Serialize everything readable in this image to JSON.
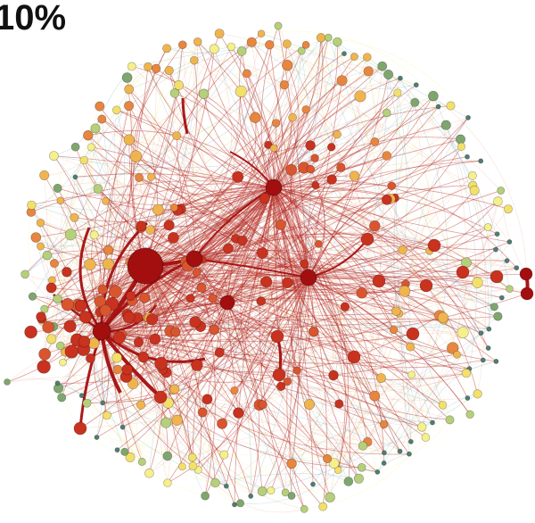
{
  "figure": {
    "title": "10%"
  },
  "network": {
    "palette": {
      "dark_red": "#a30f0f",
      "red": "#c8321f",
      "orange_red": "#d9552e",
      "orange": "#e8853f",
      "amber": "#f0b44f",
      "yellow": "#f2e06a",
      "pale_yellow": "#f5f08a",
      "light_green": "#b6cf7a",
      "green": "#7fa66e",
      "teal": "#4f7d74",
      "edge_hot": "#b3261e",
      "edge_warm": "#e07a4a",
      "edge_cool": "#6fb0c0"
    },
    "hubs": 6,
    "hub_degree_ranking": [
      "hub-a",
      "hub-b",
      "hub-c",
      "hub-d",
      "hub-e",
      "hub-f"
    ]
  }
}
